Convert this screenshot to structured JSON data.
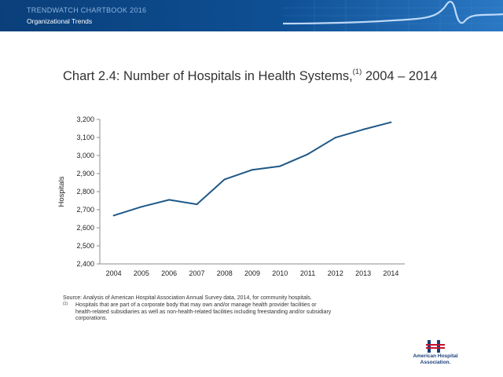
{
  "banner": {
    "title": "TRENDWATCH  CHARTBOOK  2016",
    "subtitle": "Organizational Trends"
  },
  "header": {
    "title_main": "Chart 2.4: Number of Hospitals in Health Systems,",
    "title_sup": "(1)",
    "title_years": " 2004 – 2014"
  },
  "chart_data": {
    "type": "line",
    "title": "Chart 2.4: Number of Hospitals in Health Systems,(1) 2004 – 2014",
    "xlabel": "",
    "ylabel": "Hospitals",
    "categories": [
      "2004",
      "2005",
      "2006",
      "2007",
      "2008",
      "2009",
      "2010",
      "2011",
      "2012",
      "2013",
      "2014"
    ],
    "series": [
      {
        "name": "Hospitals in Health Systems",
        "values": [
          2668,
          2716,
          2755,
          2730,
          2868,
          2921,
          2941,
          3007,
          3099,
          3144,
          3184
        ]
      }
    ],
    "ylim": [
      2400,
      3200
    ],
    "yticks": [
      2400,
      2500,
      2600,
      2700,
      2800,
      2900,
      3000,
      3100,
      3200
    ],
    "ytick_labels": [
      "2,400",
      "2,500",
      "2,600",
      "2,700",
      "2,800",
      "2,900",
      "3,000",
      "3,100",
      "3,200"
    ],
    "grid": false,
    "line_color": "#1f5887"
  },
  "footer": {
    "source": "Source: Analysis of American Hospital Association Annual Survey data, 2014, for community hospitals.",
    "footnote_mark": "(1)",
    "footnote_line1": "Hospitals that are part of a corporate body that  may own and/or manage health provider facilities or",
    "footnote_line2": "health-related subsidiaries as well as non-health-related facilities including freestanding and/or subsidiary",
    "footnote_line3": "corporations."
  },
  "logo": {
    "line1": "American Hospital",
    "line2": "Association."
  }
}
